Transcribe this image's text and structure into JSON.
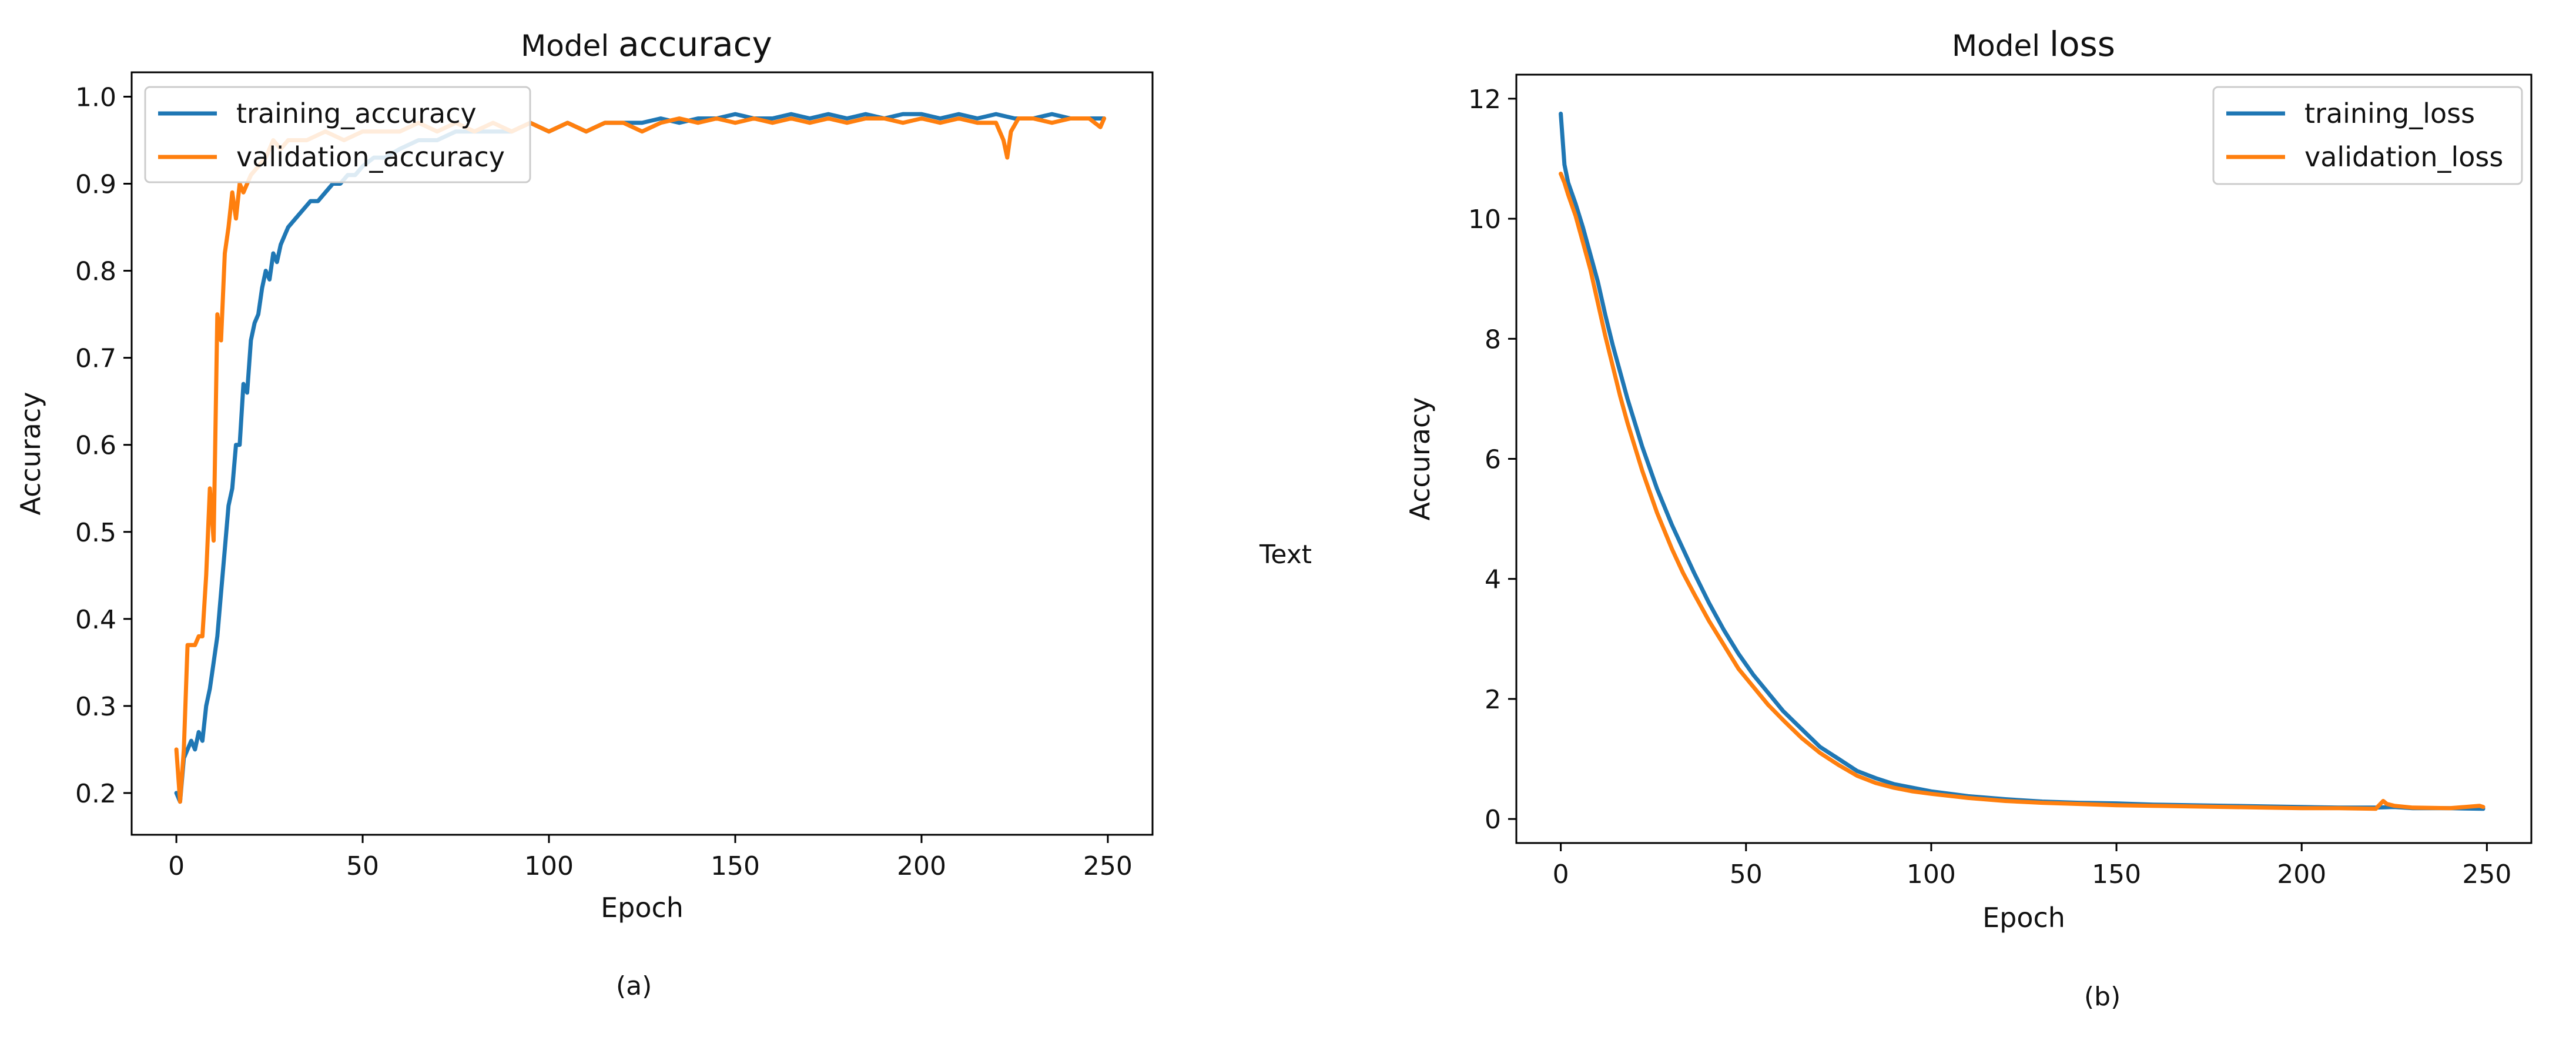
{
  "figure": {
    "captions": [
      "(a)",
      "(b)"
    ],
    "middle_text": "Text"
  },
  "colors": {
    "training": "#1f77b4",
    "validation": "#ff7f0e",
    "axes": "#000000"
  },
  "chart_data": [
    {
      "type": "line",
      "title_prefix": "Model",
      "title_main": "accuracy",
      "xlabel": "Epoch",
      "ylabel": "Accuracy",
      "xlim": [
        -12,
        262
      ],
      "ylim": [
        0.152,
        1.028
      ],
      "xticks": [
        0,
        50,
        100,
        150,
        200,
        250
      ],
      "yticks": [
        0.2,
        0.3,
        0.4,
        0.5,
        0.6,
        0.7,
        0.8,
        0.9,
        1.0
      ],
      "ytick_labels": [
        "0.2",
        "0.3",
        "0.4",
        "0.5",
        "0.6",
        "0.7",
        "0.8",
        "0.9",
        "1.0"
      ],
      "legend_position": "top-left",
      "grid": false,
      "series": [
        {
          "name": "training_accuracy",
          "x": [
            0,
            1,
            2,
            3,
            4,
            5,
            6,
            7,
            8,
            9,
            10,
            11,
            12,
            13,
            14,
            15,
            16,
            17,
            18,
            19,
            20,
            21,
            22,
            23,
            24,
            25,
            26,
            27,
            28,
            29,
            30,
            32,
            34,
            36,
            38,
            40,
            42,
            44,
            46,
            48,
            50,
            53,
            56,
            60,
            65,
            70,
            75,
            80,
            85,
            90,
            95,
            100,
            105,
            110,
            115,
            120,
            125,
            130,
            135,
            140,
            145,
            150,
            155,
            160,
            165,
            170,
            175,
            180,
            185,
            190,
            195,
            200,
            205,
            210,
            215,
            220,
            225,
            230,
            235,
            240,
            245,
            249
          ],
          "y": [
            0.2,
            0.19,
            0.24,
            0.25,
            0.26,
            0.25,
            0.27,
            0.26,
            0.3,
            0.32,
            0.35,
            0.38,
            0.43,
            0.48,
            0.53,
            0.55,
            0.6,
            0.6,
            0.67,
            0.66,
            0.72,
            0.74,
            0.75,
            0.78,
            0.8,
            0.79,
            0.82,
            0.81,
            0.83,
            0.84,
            0.85,
            0.86,
            0.87,
            0.88,
            0.88,
            0.89,
            0.9,
            0.9,
            0.91,
            0.91,
            0.92,
            0.93,
            0.93,
            0.94,
            0.95,
            0.95,
            0.96,
            0.96,
            0.96,
            0.96,
            0.97,
            0.96,
            0.97,
            0.96,
            0.97,
            0.97,
            0.97,
            0.975,
            0.97,
            0.975,
            0.975,
            0.98,
            0.975,
            0.975,
            0.98,
            0.975,
            0.98,
            0.975,
            0.98,
            0.975,
            0.98,
            0.98,
            0.975,
            0.98,
            0.975,
            0.98,
            0.975,
            0.975,
            0.98,
            0.975,
            0.975,
            0.975
          ]
        },
        {
          "name": "validation_accuracy",
          "x": [
            0,
            1,
            2,
            3,
            4,
            5,
            6,
            7,
            8,
            9,
            10,
            11,
            12,
            13,
            14,
            15,
            16,
            17,
            18,
            19,
            20,
            22,
            24,
            26,
            28,
            30,
            35,
            40,
            45,
            50,
            55,
            60,
            65,
            70,
            75,
            80,
            85,
            90,
            95,
            100,
            105,
            110,
            115,
            120,
            125,
            130,
            135,
            140,
            145,
            150,
            155,
            160,
            165,
            170,
            175,
            180,
            185,
            190,
            195,
            200,
            205,
            210,
            215,
            220,
            222,
            223,
            224,
            226,
            230,
            235,
            240,
            245,
            248,
            249
          ],
          "y": [
            0.25,
            0.19,
            0.25,
            0.37,
            0.37,
            0.37,
            0.38,
            0.38,
            0.45,
            0.55,
            0.49,
            0.75,
            0.72,
            0.82,
            0.85,
            0.89,
            0.86,
            0.9,
            0.89,
            0.9,
            0.91,
            0.92,
            0.93,
            0.95,
            0.94,
            0.95,
            0.95,
            0.96,
            0.95,
            0.96,
            0.96,
            0.96,
            0.97,
            0.96,
            0.97,
            0.96,
            0.97,
            0.96,
            0.97,
            0.96,
            0.97,
            0.96,
            0.97,
            0.97,
            0.96,
            0.97,
            0.975,
            0.97,
            0.975,
            0.97,
            0.975,
            0.97,
            0.975,
            0.97,
            0.975,
            0.97,
            0.975,
            0.975,
            0.97,
            0.975,
            0.97,
            0.975,
            0.97,
            0.97,
            0.95,
            0.93,
            0.96,
            0.975,
            0.975,
            0.97,
            0.975,
            0.975,
            0.965,
            0.975
          ]
        }
      ]
    },
    {
      "type": "line",
      "title_prefix": "Model",
      "title_main": "loss",
      "xlabel": "Epoch",
      "ylabel": "Accuracy",
      "xlim": [
        -12,
        262
      ],
      "ylim": [
        -0.4,
        12.4
      ],
      "xticks": [
        0,
        50,
        100,
        150,
        200,
        250
      ],
      "yticks": [
        0,
        2,
        4,
        6,
        8,
        10,
        12
      ],
      "ytick_labels": [
        "0",
        "2",
        "4",
        "6",
        "8",
        "10",
        "12"
      ],
      "legend_position": "top-right",
      "grid": false,
      "series": [
        {
          "name": "training_loss",
          "x": [
            0,
            1,
            2,
            4,
            6,
            8,
            10,
            12,
            14,
            16,
            18,
            20,
            22,
            24,
            26,
            28,
            30,
            33,
            36,
            40,
            44,
            48,
            52,
            56,
            60,
            65,
            70,
            75,
            80,
            85,
            90,
            95,
            100,
            110,
            120,
            130,
            140,
            150,
            160,
            170,
            180,
            190,
            200,
            210,
            220,
            225,
            230,
            240,
            249
          ],
          "y": [
            11.75,
            10.9,
            10.6,
            10.25,
            9.85,
            9.4,
            8.95,
            8.4,
            7.9,
            7.45,
            7.0,
            6.6,
            6.2,
            5.85,
            5.5,
            5.2,
            4.9,
            4.5,
            4.1,
            3.6,
            3.15,
            2.75,
            2.4,
            2.1,
            1.8,
            1.5,
            1.2,
            1.0,
            0.8,
            0.68,
            0.58,
            0.52,
            0.46,
            0.38,
            0.33,
            0.29,
            0.27,
            0.26,
            0.24,
            0.23,
            0.22,
            0.21,
            0.2,
            0.19,
            0.19,
            0.2,
            0.18,
            0.18,
            0.17
          ]
        },
        {
          "name": "validation_loss",
          "x": [
            0,
            1,
            2,
            4,
            6,
            8,
            10,
            12,
            14,
            16,
            18,
            20,
            22,
            24,
            26,
            28,
            30,
            33,
            36,
            40,
            44,
            48,
            52,
            56,
            60,
            65,
            70,
            75,
            80,
            85,
            90,
            95,
            100,
            110,
            120,
            130,
            140,
            150,
            160,
            170,
            180,
            190,
            200,
            210,
            220,
            222,
            223,
            225,
            230,
            240,
            248,
            249
          ],
          "y": [
            10.75,
            10.6,
            10.4,
            10.05,
            9.6,
            9.15,
            8.6,
            8.05,
            7.55,
            7.05,
            6.6,
            6.2,
            5.8,
            5.45,
            5.1,
            4.8,
            4.5,
            4.1,
            3.75,
            3.3,
            2.9,
            2.5,
            2.2,
            1.9,
            1.65,
            1.35,
            1.1,
            0.9,
            0.72,
            0.6,
            0.52,
            0.46,
            0.42,
            0.35,
            0.3,
            0.27,
            0.25,
            0.23,
            0.22,
            0.21,
            0.2,
            0.19,
            0.18,
            0.18,
            0.17,
            0.3,
            0.25,
            0.22,
            0.19,
            0.18,
            0.22,
            0.2
          ]
        }
      ]
    }
  ]
}
